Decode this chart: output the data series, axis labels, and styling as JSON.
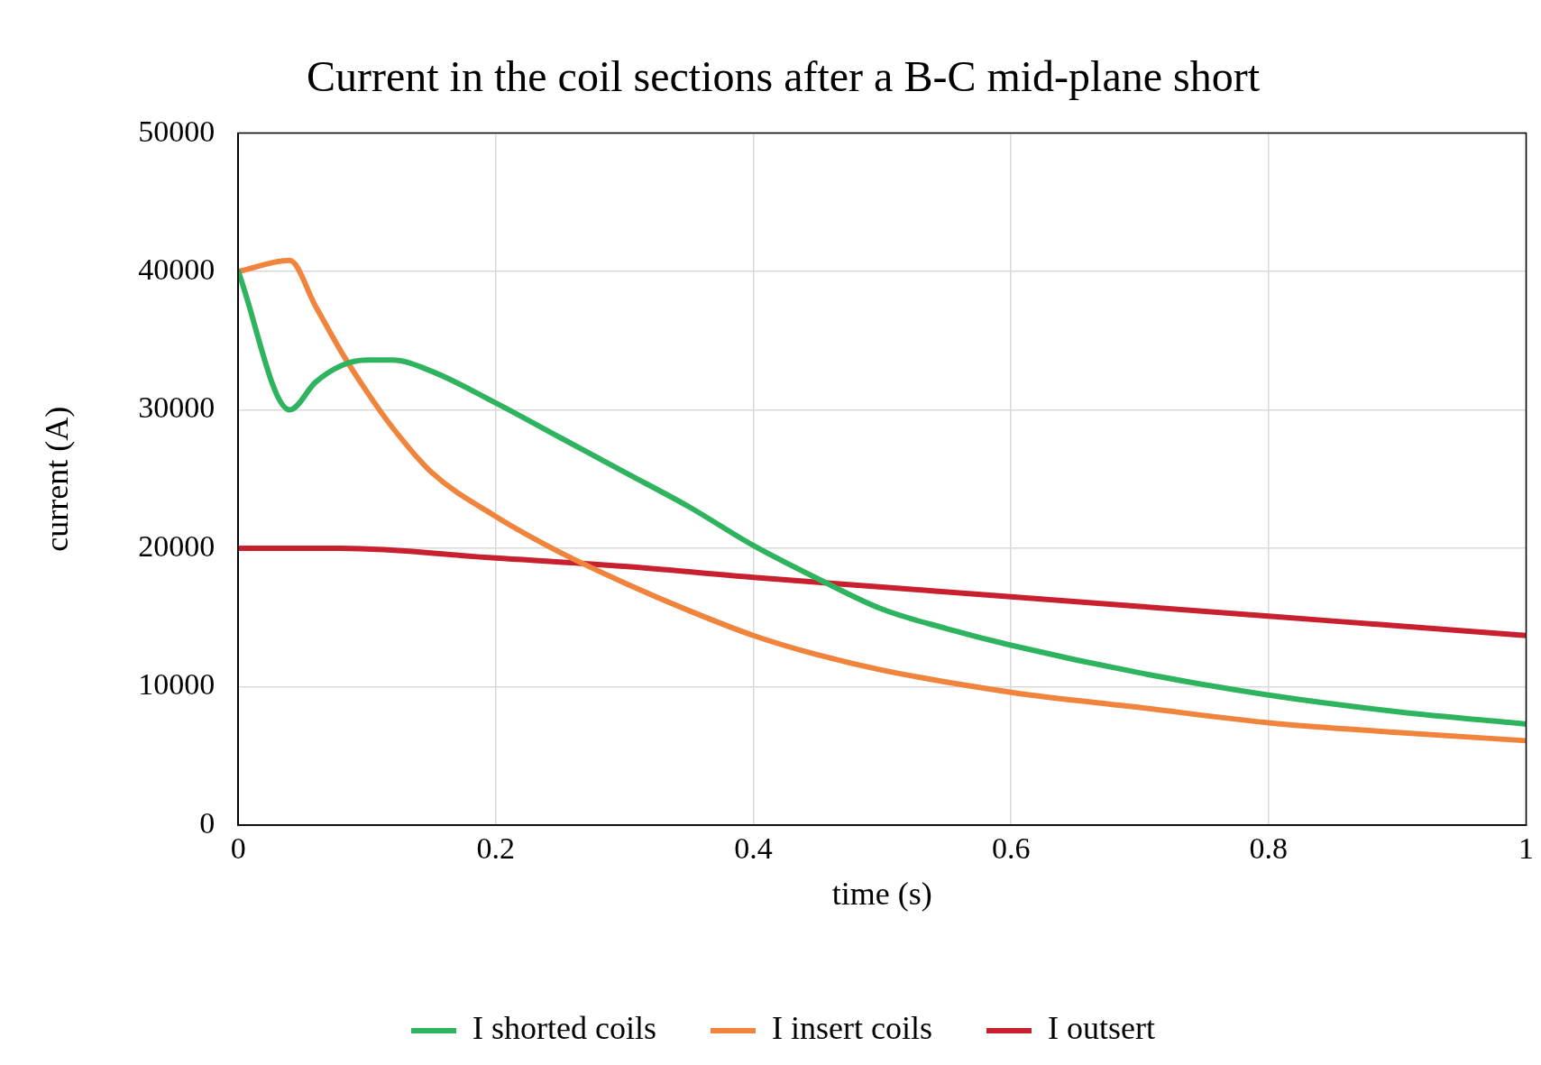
{
  "chart_data": {
    "type": "line",
    "title": "Current in the coil sections after a B-C mid-plane short",
    "xlabel": "time (s)",
    "ylabel": "current (A)",
    "xlim": [
      0,
      1
    ],
    "xticks": [
      0,
      0.2,
      0.4,
      0.6,
      0.8,
      1
    ],
    "ylim": [
      0,
      50000
    ],
    "yticks": [
      0,
      10000,
      20000,
      30000,
      40000,
      50000
    ],
    "grid": true,
    "legend": "bottom",
    "marker": "none",
    "line_style": "solid",
    "series": [
      {
        "name": "I shorted coils",
        "color": "#2eb35f",
        "x": [
          0,
          0.04,
          0.06,
          0.08,
          0.1,
          0.12,
          0.15,
          0.2,
          0.25,
          0.3,
          0.35,
          0.4,
          0.45,
          0.5,
          0.55,
          0.6,
          0.7,
          0.8,
          0.9,
          1.0
        ],
        "values": [
          40000,
          30000,
          32000,
          33200,
          33600,
          33600,
          32800,
          30500,
          28000,
          25500,
          23000,
          20200,
          17800,
          15600,
          14200,
          13000,
          11000,
          9400,
          8200,
          7300
        ]
      },
      {
        "name": "I insert coils",
        "color": "#f0843c",
        "x": [
          0,
          0.04,
          0.06,
          0.08,
          0.1,
          0.12,
          0.15,
          0.2,
          0.25,
          0.3,
          0.35,
          0.4,
          0.45,
          0.5,
          0.6,
          0.7,
          0.8,
          0.9,
          1.0
        ],
        "values": [
          40000,
          40800,
          37500,
          34200,
          31300,
          28700,
          25500,
          22300,
          19700,
          17500,
          15500,
          13700,
          12300,
          11200,
          9600,
          8500,
          7400,
          6700,
          6100
        ]
      },
      {
        "name": "I outsert",
        "color": "#c8202f",
        "x": [
          0,
          0.08,
          0.2,
          0.3,
          0.4,
          0.5,
          0.6,
          0.7,
          0.8,
          0.9,
          1.0
        ],
        "values": [
          20000,
          20000,
          19300,
          18700,
          17900,
          17200,
          16500,
          15800,
          15100,
          14400,
          13700
        ]
      }
    ]
  }
}
